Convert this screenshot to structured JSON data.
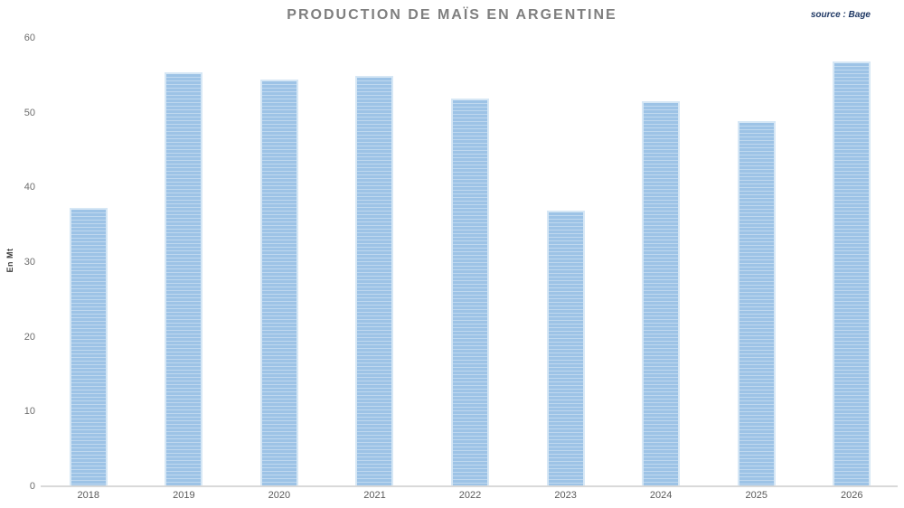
{
  "chart_data": {
    "type": "bar",
    "title": "PRODUCTION DE MAÏS EN ARGENTINE",
    "source": "source : Bage",
    "ylabel": "En Mt",
    "xlabel": "",
    "categories": [
      "2018",
      "2019",
      "2020",
      "2021",
      "2022",
      "2023",
      "2024",
      "2025",
      "2026"
    ],
    "values": [
      37.3,
      55.4,
      54.4,
      54.9,
      51.9,
      36.9,
      51.5,
      48.9,
      56.9
    ],
    "ylim": [
      0,
      60
    ],
    "yticks": [
      0,
      10,
      20,
      30,
      40,
      50,
      60
    ],
    "grid": false,
    "legend": false,
    "bar_color": "#9DC3E6",
    "bar_stripe_color": "rgba(255,255,255,0.35)",
    "bar_border_color": "#D6E7F5",
    "axis_line_color": "#D9D9D9",
    "title_color": "#7F7F7F",
    "source_color": "#1F3864",
    "tick_label_color": "#6e6e6e"
  }
}
